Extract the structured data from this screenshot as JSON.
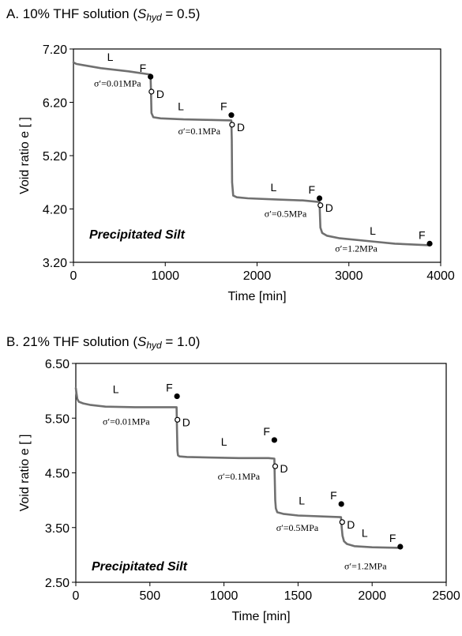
{
  "panels": [
    {
      "title_main": "A. 10% THF solution (",
      "title_sym": "S",
      "title_sub": "hyd",
      "title_tail": " = 0.5)"
    },
    {
      "title_main": "B. 21% THF solution  (",
      "title_sym": "S",
      "title_sub": "hyd",
      "title_tail": " = 1.0)"
    }
  ],
  "chart_data": [
    {
      "type": "line",
      "xlabel": "Time [min]",
      "ylabel": "Void ratio e [ ]",
      "xlim": [
        0,
        4000
      ],
      "ylim": [
        3.2,
        7.2
      ],
      "xticks": [
        "0",
        "1000",
        "2000",
        "3000",
        "4000"
      ],
      "yticks": [
        "3.20",
        "4.20",
        "5.20",
        "6.20",
        "7.20"
      ],
      "inset_label": "Precipitated Silt",
      "series": [
        {
          "x": [
            0,
            30,
            100,
            300,
            600,
            840,
            845,
            850,
            870,
            950,
            1200,
            1500,
            1720,
            1725,
            1728,
            1740,
            1780,
            1900,
            2200,
            2500,
            2680,
            2685,
            2690,
            2710,
            2760,
            2900,
            3200,
            3500,
            3880
          ],
          "y": [
            6.95,
            6.92,
            6.9,
            6.84,
            6.78,
            6.72,
            6.4,
            6.0,
            5.92,
            5.9,
            5.88,
            5.87,
            5.86,
            5.5,
            4.7,
            4.45,
            4.42,
            4.4,
            4.38,
            4.36,
            4.33,
            4.1,
            3.85,
            3.75,
            3.7,
            3.65,
            3.6,
            3.55,
            3.52
          ]
        }
      ],
      "points": [
        {
          "label": "F",
          "x": 840,
          "y": 6.68,
          "filled": true
        },
        {
          "label": "D",
          "x": 850,
          "y": 6.4,
          "filled": false
        },
        {
          "label": "F",
          "x": 1720,
          "y": 5.96,
          "filled": true
        },
        {
          "label": "D",
          "x": 1728,
          "y": 5.78,
          "filled": false
        },
        {
          "label": "F",
          "x": 2680,
          "y": 4.4,
          "filled": true
        },
        {
          "label": "D",
          "x": 2690,
          "y": 4.27,
          "filled": false
        },
        {
          "label": "F",
          "x": 3880,
          "y": 3.55,
          "filled": true
        }
      ],
      "L_labels": [
        {
          "text": "L",
          "x": 400,
          "y": 6.98
        },
        {
          "text": "L",
          "x": 1170,
          "y": 6.05
        },
        {
          "text": "L",
          "x": 2180,
          "y": 4.53
        },
        {
          "text": "L",
          "x": 3260,
          "y": 3.72
        }
      ],
      "stress_labels": [
        {
          "text": "σ′=0.01MPa",
          "x": 480,
          "y": 6.5
        },
        {
          "text": "σ′=0.1MPa",
          "x": 1370,
          "y": 5.6
        },
        {
          "text": "σ′=0.5MPa",
          "x": 2310,
          "y": 4.05
        },
        {
          "text": "σ′=1.2MPa",
          "x": 3080,
          "y": 3.4
        }
      ]
    },
    {
      "type": "line",
      "xlabel": "Time [min]",
      "ylabel": "Void ratio e [ ]",
      "xlim": [
        0,
        2500
      ],
      "ylim": [
        2.5,
        6.5
      ],
      "xticks": [
        "0",
        "500",
        "1000",
        "1500",
        "2000",
        "2500"
      ],
      "yticks": [
        "2.50",
        "3.50",
        "4.50",
        "5.50",
        "6.50"
      ],
      "inset_label": "Precipitated Silt",
      "series": [
        {
          "x": [
            0,
            5,
            10,
            20,
            50,
            100,
            200,
            400,
            600,
            680,
            683,
            686,
            690,
            700,
            750,
            900,
            1100,
            1300,
            1340,
            1343,
            1346,
            1350,
            1360,
            1400,
            1500,
            1700,
            1790,
            1795,
            1800,
            1810,
            1830,
            1880,
            2000,
            2190
          ],
          "y": [
            6.05,
            5.95,
            5.85,
            5.8,
            5.77,
            5.74,
            5.71,
            5.7,
            5.7,
            5.7,
            5.3,
            4.9,
            4.82,
            4.8,
            4.79,
            4.78,
            4.77,
            4.77,
            4.76,
            4.4,
            4.0,
            3.85,
            3.78,
            3.75,
            3.72,
            3.7,
            3.69,
            3.5,
            3.35,
            3.25,
            3.2,
            3.16,
            3.14,
            3.13
          ]
        }
      ],
      "points": [
        {
          "label": "F",
          "x": 683,
          "y": 5.9,
          "filled": true
        },
        {
          "label": "D",
          "x": 686,
          "y": 5.47,
          "filled": false
        },
        {
          "label": "F",
          "x": 1340,
          "y": 5.1,
          "filled": true
        },
        {
          "label": "D",
          "x": 1346,
          "y": 4.62,
          "filled": false
        },
        {
          "label": "F",
          "x": 1792,
          "y": 3.93,
          "filled": true
        },
        {
          "label": "D",
          "x": 1798,
          "y": 3.6,
          "filled": false
        },
        {
          "label": "F",
          "x": 2190,
          "y": 3.15,
          "filled": true
        }
      ],
      "L_labels": [
        {
          "text": "L",
          "x": 270,
          "y": 5.96
        },
        {
          "text": "L",
          "x": 1000,
          "y": 5.0
        },
        {
          "text": "L",
          "x": 1525,
          "y": 3.92
        },
        {
          "text": "L",
          "x": 1950,
          "y": 3.33
        }
      ],
      "stress_labels": [
        {
          "text": "σ′=0.01MPa",
          "x": 340,
          "y": 5.38
        },
        {
          "text": "σ′=0.1MPa",
          "x": 1100,
          "y": 4.38
        },
        {
          "text": "σ′=0.5MPa",
          "x": 1495,
          "y": 3.44
        },
        {
          "text": "σ′=1.2MPa",
          "x": 1955,
          "y": 2.74
        }
      ]
    }
  ]
}
